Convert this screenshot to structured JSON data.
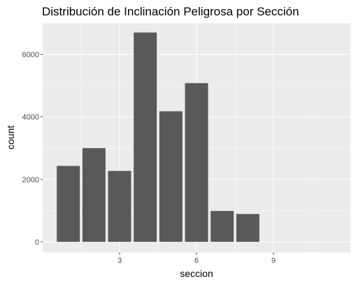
{
  "chart_data": {
    "type": "bar",
    "title": "Distribución de Inclinación Peligrosa por Sección",
    "xlabel": "seccion",
    "ylabel": "count",
    "x": [
      1,
      2,
      3,
      4,
      5,
      6,
      7,
      8
    ],
    "values": [
      2430,
      3000,
      2270,
      6700,
      4180,
      5080,
      990,
      890
    ],
    "xlim": [
      0,
      12
    ],
    "ylim": [
      -340,
      7000
    ],
    "x_ticks": [
      3,
      6,
      9
    ],
    "y_ticks": [
      0,
      2000,
      4000,
      6000
    ],
    "bar_width": 0.9,
    "grid": true,
    "colors": {
      "panel": "#ebebeb",
      "grid_major": "#ffffff",
      "bar": "#595959"
    }
  }
}
